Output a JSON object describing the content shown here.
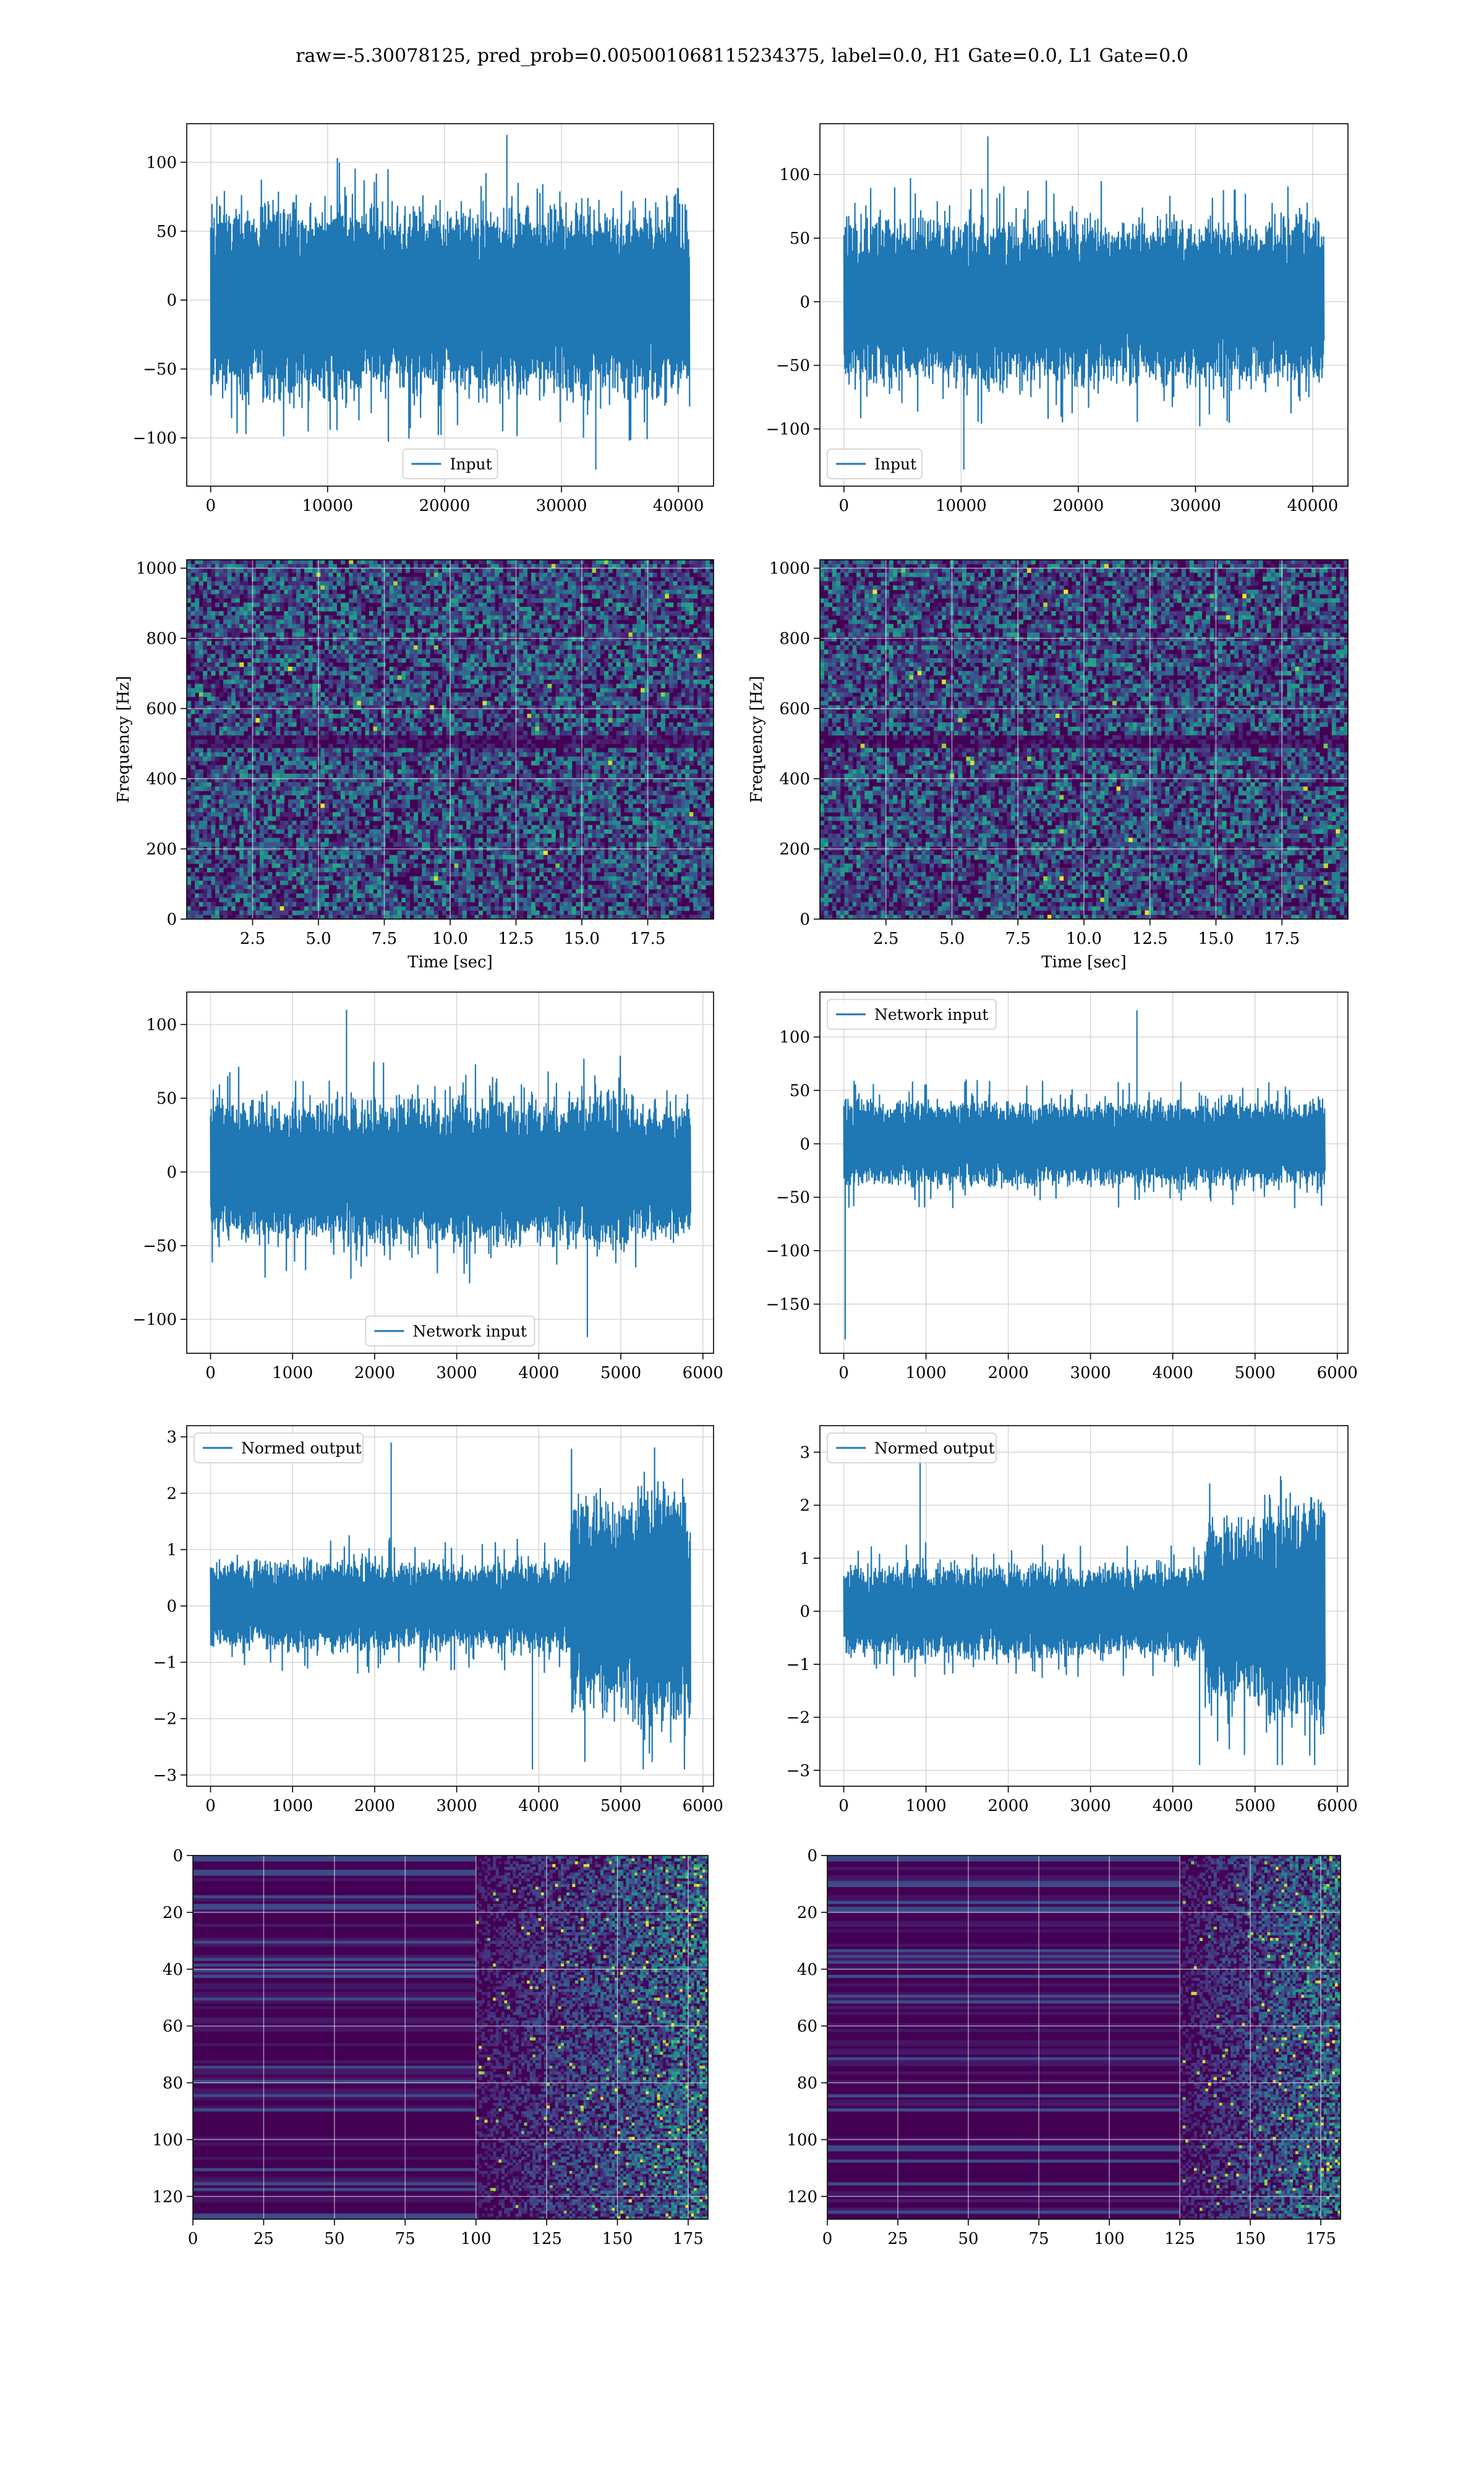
{
  "figure": {
    "suptitle": "raw=-5.30078125, pred_prob=0.005001068115234375, label=0.0, H1 Gate=0.0, L1 Gate=0.0"
  },
  "colors": {
    "series": "#1f77b4",
    "grid": "#d6d6d6",
    "viridis_dark": "#440154",
    "viridis_mid": "#21908d",
    "viridis_bright": "#fde725"
  },
  "chart_data": [
    {
      "id": "h1-input",
      "type": "line",
      "description_free": true,
      "x_range": [
        0,
        40960
      ],
      "xlim": [
        -2048,
        43008
      ],
      "ylim": [
        -135,
        128
      ],
      "xticks": [
        0,
        10000,
        20000,
        30000,
        40000
      ],
      "xtick_labels": [
        "0",
        "10000",
        "20000",
        "30000",
        "40000"
      ],
      "yticks": [
        -100,
        -50,
        0,
        50,
        100
      ],
      "ytick_labels": [
        "−100",
        "−50",
        "0",
        "50",
        "100"
      ],
      "envelope": {
        "typical": 65,
        "peak_max": 120,
        "peak_min": -123,
        "profile": [
          1,
          1,
          1,
          1,
          1,
          1,
          1,
          1
        ]
      },
      "series": [
        {
          "name": "Input"
        }
      ],
      "legend": "lower center",
      "xlabel": "",
      "ylabel": "",
      "grid": true
    },
    {
      "id": "l1-input",
      "type": "line",
      "x_range": [
        0,
        40960
      ],
      "xlim": [
        -2048,
        43008
      ],
      "ylim": [
        -145,
        140
      ],
      "xticks": [
        0,
        10000,
        20000,
        30000,
        40000
      ],
      "xtick_labels": [
        "0",
        "10000",
        "20000",
        "30000",
        "40000"
      ],
      "yticks": [
        -100,
        -50,
        0,
        50,
        100
      ],
      "ytick_labels": [
        "−100",
        "−50",
        "0",
        "50",
        "100"
      ],
      "envelope": {
        "typical": 62,
        "peak_max": 130,
        "peak_min": -132,
        "profile": [
          1,
          1,
          1,
          1,
          1,
          1,
          1,
          1
        ]
      },
      "series": [
        {
          "name": "Input"
        }
      ],
      "legend": "lower left",
      "xlabel": "",
      "ylabel": "",
      "grid": true
    },
    {
      "id": "h1-spectrogram",
      "type": "heatmap",
      "xlim": [
        0,
        20
      ],
      "ylim": [
        0,
        1024
      ],
      "xticks": [
        2.5,
        5.0,
        7.5,
        10.0,
        12.5,
        15.0,
        17.5
      ],
      "xtick_labels": [
        "2.5",
        "5.0",
        "7.5",
        "10.0",
        "12.5",
        "15.0",
        "17.5"
      ],
      "yticks": [
        0,
        200,
        400,
        600,
        800,
        1000
      ],
      "ytick_labels": [
        "0",
        "200",
        "400",
        "600",
        "800",
        "1000"
      ],
      "dark_band_hz": 500,
      "xlabel": "Time [sec]",
      "ylabel": "Frequency [Hz]",
      "grid": true
    },
    {
      "id": "l1-spectrogram",
      "type": "heatmap",
      "xlim": [
        0,
        20
      ],
      "ylim": [
        0,
        1024
      ],
      "xticks": [
        2.5,
        5.0,
        7.5,
        10.0,
        12.5,
        15.0,
        17.5
      ],
      "xtick_labels": [
        "2.5",
        "5.0",
        "7.5",
        "10.0",
        "12.5",
        "15.0",
        "17.5"
      ],
      "yticks": [
        0,
        200,
        400,
        600,
        800,
        1000
      ],
      "ytick_labels": [
        "0",
        "200",
        "400",
        "600",
        "800",
        "1000"
      ],
      "dark_band_hz": 500,
      "xlabel": "Time [sec]",
      "ylabel": "Frequency [Hz]",
      "grid": true
    },
    {
      "id": "h1-network-input",
      "type": "line",
      "x_range": [
        0,
        5850
      ],
      "xlim": [
        -290,
        6130
      ],
      "ylim": [
        -123,
        122
      ],
      "xticks": [
        0,
        1000,
        2000,
        3000,
        4000,
        5000,
        6000
      ],
      "xtick_labels": [
        "0",
        "1000",
        "2000",
        "3000",
        "4000",
        "5000",
        "6000"
      ],
      "yticks": [
        -100,
        -50,
        0,
        50,
        100
      ],
      "ytick_labels": [
        "−100",
        "−50",
        "0",
        "50",
        "100"
      ],
      "envelope": {
        "typical": 45,
        "peak_max": 110,
        "peak_min": -112,
        "profile": [
          1,
          0.95,
          1.05,
          1,
          1.05,
          1,
          1.1,
          1
        ]
      },
      "series": [
        {
          "name": "Network input"
        }
      ],
      "legend": "lower center",
      "xlabel": "",
      "ylabel": "",
      "grid": true
    },
    {
      "id": "l1-network-input",
      "type": "line",
      "x_range": [
        0,
        5850
      ],
      "xlim": [
        -290,
        6130
      ],
      "ylim": [
        -196,
        142
      ],
      "xticks": [
        0,
        1000,
        2000,
        3000,
        4000,
        5000,
        6000
      ],
      "xtick_labels": [
        "0",
        "1000",
        "2000",
        "3000",
        "4000",
        "5000",
        "6000"
      ],
      "yticks": [
        -150,
        -100,
        -50,
        0,
        50,
        100
      ],
      "ytick_labels": [
        "−150",
        "−100",
        "−50",
        "0",
        "50",
        "100"
      ],
      "envelope": {
        "typical": 38,
        "peak_max": 125,
        "peak_min": -183,
        "profile": [
          1,
          1,
          1,
          1,
          1,
          1,
          1,
          1
        ]
      },
      "series": [
        {
          "name": "Network input"
        }
      ],
      "legend": "upper left",
      "xlabel": "",
      "ylabel": "",
      "grid": true
    },
    {
      "id": "h1-normed-output",
      "type": "line",
      "x_range": [
        0,
        5850
      ],
      "xlim": [
        -290,
        6130
      ],
      "ylim": [
        -3.2,
        3.2
      ],
      "xticks": [
        0,
        1000,
        2000,
        3000,
        4000,
        5000,
        6000
      ],
      "xtick_labels": [
        "0",
        "1000",
        "2000",
        "3000",
        "4000",
        "5000",
        "6000"
      ],
      "yticks": [
        -3,
        -2,
        -1,
        0,
        1,
        2,
        3
      ],
      "ytick_labels": [
        "−3",
        "−2",
        "−1",
        "0",
        "1",
        "2",
        "3"
      ],
      "envelope": {
        "typical": 0.8,
        "peak_max": 2.9,
        "peak_min": -2.9,
        "profile": [
          0.9,
          0.95,
          1,
          0.9,
          0.9,
          0.95,
          2.2,
          2.6
        ]
      },
      "series": [
        {
          "name": "Normed output"
        }
      ],
      "legend": "upper left",
      "xlabel": "",
      "ylabel": "",
      "grid": true
    },
    {
      "id": "l1-normed-output",
      "type": "line",
      "x_range": [
        0,
        5850
      ],
      "xlim": [
        -290,
        6130
      ],
      "ylim": [
        -3.3,
        3.5
      ],
      "xticks": [
        0,
        1000,
        2000,
        3000,
        4000,
        5000,
        6000
      ],
      "xtick_labels": [
        "0",
        "1000",
        "2000",
        "3000",
        "4000",
        "5000",
        "6000"
      ],
      "yticks": [
        -3,
        -2,
        -1,
        0,
        1,
        2,
        3
      ],
      "ytick_labels": [
        "−3",
        "−2",
        "−1",
        "0",
        "1",
        "2",
        "3"
      ],
      "envelope": {
        "typical": 0.85,
        "peak_max": 3.2,
        "peak_min": -2.9,
        "profile": [
          0.9,
          1,
          1,
          0.95,
          0.95,
          1,
          2.0,
          2.4
        ]
      },
      "series": [
        {
          "name": "Normed output"
        }
      ],
      "legend": "upper left",
      "xlabel": "",
      "ylabel": "",
      "grid": true
    },
    {
      "id": "h1-features",
      "type": "heatmap",
      "xlim": [
        0,
        182
      ],
      "ylim": [
        128,
        0
      ],
      "xticks": [
        0,
        25,
        50,
        75,
        100,
        125,
        150,
        175
      ],
      "xtick_labels": [
        "0",
        "25",
        "50",
        "75",
        "100",
        "125",
        "150",
        "175"
      ],
      "yticks": [
        0,
        20,
        40,
        60,
        80,
        100,
        120
      ],
      "ytick_labels": [
        "0",
        "20",
        "40",
        "60",
        "80",
        "100",
        "120"
      ],
      "onset_column": 100,
      "xlabel": "",
      "ylabel": "",
      "grid": true
    },
    {
      "id": "l1-features",
      "type": "heatmap",
      "xlim": [
        0,
        182
      ],
      "ylim": [
        128,
        0
      ],
      "xticks": [
        0,
        25,
        50,
        75,
        100,
        125,
        150,
        175
      ],
      "xtick_labels": [
        "0",
        "25",
        "50",
        "75",
        "100",
        "125",
        "150",
        "175"
      ],
      "yticks": [
        0,
        20,
        40,
        60,
        80,
        100,
        120
      ],
      "ytick_labels": [
        "0",
        "20",
        "40",
        "60",
        "80",
        "100",
        "120"
      ],
      "onset_column": 125,
      "xlabel": "",
      "ylabel": "",
      "grid": true
    }
  ]
}
